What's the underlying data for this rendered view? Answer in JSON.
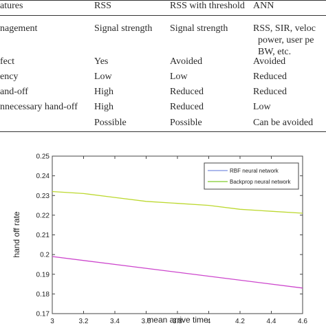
{
  "table": {
    "headers": [
      "atures",
      "RSS",
      "RSS with threshold",
      "ANN"
    ],
    "rows": [
      [
        "nagement",
        "Signal strength",
        "Signal strength",
        "RSS, SIR, veloc\n  power, user pe\n  BW, etc."
      ],
      [
        "fect",
        "Yes",
        "Avoided",
        "Avoided"
      ],
      [
        "ency",
        "Low",
        "Low",
        "Reduced"
      ],
      [
        "and-off",
        "High",
        "Reduced",
        "Reduced"
      ],
      [
        "nnecessary hand-off",
        "High",
        "Reduced",
        "Low"
      ],
      [
        "",
        "Possible",
        "Possible",
        "Can be avoided"
      ]
    ]
  },
  "chart_data": {
    "type": "line",
    "xlabel": "mean arrive time",
    "ylabel": "hand off rate",
    "xlim": [
      3,
      4.6
    ],
    "ylim": [
      0.17,
      0.25
    ],
    "xticks": [
      "3",
      "3.2",
      "3.4",
      "3.6",
      "3.8",
      "4",
      "4.2",
      "4.4",
      "4.6"
    ],
    "yticks": [
      "0.17",
      "0.18",
      "0.19",
      "0.2",
      "0.21",
      "0.22",
      "0.23",
      "0.24",
      "0.25"
    ],
    "legend_position": "top-right",
    "series": [
      {
        "name": "RBF neural network",
        "color": "#cc44cc",
        "legend_color": "#7a8fe0",
        "x": [
          3,
          4.6
        ],
        "y": [
          0.199,
          0.183
        ]
      },
      {
        "name": "Backprop neural network",
        "color": "#bcd82e",
        "legend_color": "#7fcc2a",
        "x": [
          3,
          3.2,
          3.4,
          3.6,
          3.8,
          4.0,
          4.2,
          4.4,
          4.6
        ],
        "y": [
          0.232,
          0.231,
          0.229,
          0.227,
          0.226,
          0.225,
          0.223,
          0.222,
          0.221
        ]
      }
    ]
  }
}
